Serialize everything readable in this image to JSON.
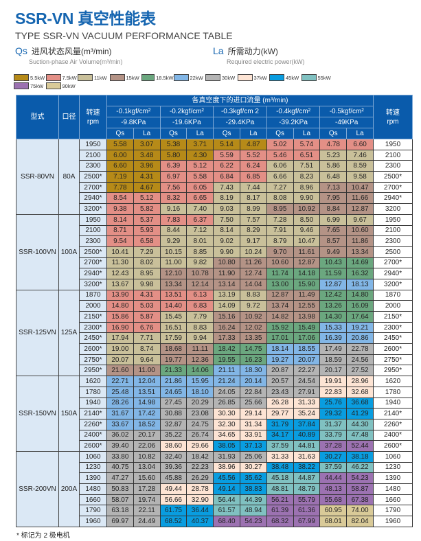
{
  "title": "SSR-VN 真空性能表",
  "subtitle": "TYPE SSR-VN VACUUM PERFORMANCE TABLE",
  "definitions": [
    {
      "symbol": "Qs",
      "cn": "进风状态风量(m³/min)",
      "en": "Suction-phase Air Volume(m³/min)"
    },
    {
      "symbol": "La",
      "cn": "所需动力(kW)",
      "en": "Required electric power(kW)"
    }
  ],
  "legend": [
    {
      "label": "5.5kW",
      "color": "#b68a18"
    },
    {
      "label": "7.5kW",
      "color": "#e38f86"
    },
    {
      "label": "11kW",
      "color": "#c9c09a"
    },
    {
      "label": "15kW",
      "color": "#b49386"
    },
    {
      "label": "18.5kW",
      "color": "#6ba77f"
    },
    {
      "label": "22kW",
      "color": "#82b6e6"
    },
    {
      "label": "30kW",
      "color": "#b4b4b4"
    },
    {
      "label": "37kW",
      "color": "#fde4d4"
    },
    {
      "label": "45kW",
      "color": "#099de0"
    },
    {
      "label": "55kW",
      "color": "#80c1c1"
    },
    {
      "label": "75kW",
      "color": "#9c72b1"
    },
    {
      "label": "90kW",
      "color": "#d9ca98"
    }
  ],
  "table": {
    "header": {
      "model": "型式",
      "bore": "口径",
      "rpm": "转速",
      "rpm_unit": "rpm",
      "flow_title": "各真空度下的进口流量 (m³/min)",
      "pressures": [
        {
          "kgf": "-0.1kgf/cm²",
          "kpa": "-9.8KPa"
        },
        {
          "kgf": "-0.2kgf/cm²",
          "kpa": "-19.6KPa"
        },
        {
          "kgf": "-0.3kgf/cm 2",
          "kpa": "-29.4KPa"
        },
        {
          "kgf": "-0.4kgf/cm²",
          "kpa": "-39.2KPa"
        },
        {
          "kgf": "-0.5kgf/cm²",
          "kpa": "-49KPa"
        }
      ],
      "qs": "Qs",
      "la": "La"
    },
    "groups": [
      {
        "model": "SSR-80VN",
        "bore": "80A",
        "rows": [
          {
            "rpm": "1950",
            "rpm_r": "1950",
            "v": [
              "5.58",
              "3.07",
              "5.38",
              "3.71",
              "5.14",
              "4.87",
              "5.02",
              "5.74",
              "4.78",
              "6.60"
            ],
            "c": [
              0,
              0,
              0,
              1,
              1
            ]
          },
          {
            "rpm": "2100",
            "rpm_r": "2100",
            "v": [
              "6.00",
              "3.48",
              "5.80",
              "4.30",
              "5.59",
              "5.52",
              "5.46",
              "6.51",
              "5.23",
              "7.46"
            ],
            "c": [
              0,
              0,
              1,
              1,
              2
            ]
          },
          {
            "rpm": "2300",
            "rpm_r": "2300",
            "v": [
              "6.60",
              "3.96",
              "6.39",
              "5.12",
              "6.22",
              "6.24",
              "6.06",
              "7.51",
              "5.86",
              "8.59"
            ],
            "c": [
              0,
              1,
              1,
              2,
              2
            ]
          },
          {
            "rpm": "2500*",
            "rpm_r": "2500*",
            "v": [
              "7.19",
              "4.31",
              "6.97",
              "5.58",
              "6.84",
              "6.85",
              "6.66",
              "8.23",
              "6.48",
              "9.58"
            ],
            "c": [
              0,
              1,
              1,
              2,
              2
            ]
          },
          {
            "rpm": "2700*",
            "rpm_r": "2700*",
            "v": [
              "7.78",
              "4.67",
              "7.56",
              "6.05",
              "7.43",
              "7.44",
              "7.27",
              "8.96",
              "7.13",
              "10.47"
            ],
            "c": [
              0,
              1,
              2,
              2,
              3
            ]
          },
          {
            "rpm": "2940*",
            "rpm_r": "2940*",
            "v": [
              "8.54",
              "5.12",
              "8.32",
              "6.65",
              "8.19",
              "8.17",
              "8.08",
              "9.90",
              "7.95",
              "11.66"
            ],
            "c": [
              1,
              1,
              2,
              2,
              3
            ]
          },
          {
            "rpm": "3200*",
            "rpm_r": "3200",
            "v": [
              "9.38",
              "5.82",
              "9.16",
              "7.40",
              "9.03",
              "8.99",
              "8.95",
              "10.92",
              "8.84",
              "12.87"
            ],
            "c": [
              1,
              2,
              2,
              3,
              3
            ]
          }
        ]
      },
      {
        "model": "SSR-100VN",
        "bore": "100A",
        "rows": [
          {
            "rpm": "1950",
            "rpm_r": "1950",
            "v": [
              "8.14",
              "5.37",
              "7.83",
              "6.37",
              "7.50",
              "7.57",
              "7.28",
              "8.50",
              "6.99",
              "9.67"
            ],
            "c": [
              1,
              1,
              2,
              2,
              2
            ]
          },
          {
            "rpm": "2100",
            "rpm_r": "2100",
            "v": [
              "8.71",
              "5.93",
              "8.44",
              "7.12",
              "8.14",
              "8.29",
              "7.91",
              "9.46",
              "7.65",
              "10.60"
            ],
            "c": [
              1,
              2,
              2,
              2,
              3
            ]
          },
          {
            "rpm": "2300",
            "rpm_r": "2300",
            "v": [
              "9.54",
              "6.58",
              "9.29",
              "8.01",
              "9.02",
              "9.17",
              "8.79",
              "10.47",
              "8.57",
              "11.86"
            ],
            "c": [
              1,
              2,
              2,
              2,
              3
            ]
          },
          {
            "rpm": "2500*",
            "rpm_r": "2500",
            "v": [
              "10.41",
              "7.29",
              "10.15",
              "8.85",
              "9.90",
              "10.24",
              "9.70",
              "11.61",
              "9.49",
              "13.34"
            ],
            "c": [
              2,
              2,
              2,
              3,
              3
            ]
          },
          {
            "rpm": "2700*",
            "rpm_r": "2700*",
            "v": [
              "11.30",
              "8.02",
              "11.00",
              "9.82",
              "10.80",
              "11.26",
              "10.60",
              "12.87",
              "10.43",
              "14.69"
            ],
            "c": [
              2,
              2,
              3,
              3,
              4
            ]
          },
          {
            "rpm": "2940*",
            "rpm_r": "2940*",
            "v": [
              "12.43",
              "8.95",
              "12.10",
              "10.78",
              "11.90",
              "12.74",
              "11.74",
              "14.18",
              "11.59",
              "16.32"
            ],
            "c": [
              2,
              3,
              3,
              4,
              4
            ]
          },
          {
            "rpm": "3200*",
            "rpm_r": "3200*",
            "v": [
              "13.67",
              "9.98",
              "13.34",
              "12.14",
              "13.14",
              "14.04",
              "13.00",
              "15.90",
              "12.87",
              "18.13"
            ],
            "c": [
              2,
              3,
              3,
              4,
              5
            ]
          }
        ]
      },
      {
        "model": "SSR-125VN",
        "bore": "125A",
        "rows": [
          {
            "rpm": "1870",
            "rpm_r": "1870",
            "v": [
              "13.90",
              "4.31",
              "13.51",
              "6.13",
              "13.19",
              "8.83",
              "12.87",
              "11.49",
              "12.42",
              "14.80"
            ],
            "c": [
              1,
              1,
              2,
              3,
              4
            ]
          },
          {
            "rpm": "2000",
            "rpm_r": "2000",
            "v": [
              "14.80",
              "5.03",
              "14.40",
              "6.83",
              "14.09",
              "9.72",
              "13.74",
              "12.55",
              "13.26",
              "16.09"
            ],
            "c": [
              1,
              1,
              2,
              3,
              4
            ]
          },
          {
            "rpm": "2150*",
            "rpm_r": "2150*",
            "v": [
              "15.86",
              "5.87",
              "15.45",
              "7.79",
              "15.16",
              "10.92",
              "14.82",
              "13.98",
              "14.30",
              "17.64"
            ],
            "c": [
              1,
              2,
              3,
              3,
              4
            ]
          },
          {
            "rpm": "2300*",
            "rpm_r": "2300*",
            "v": [
              "16.90",
              "6.76",
              "16.51",
              "8.83",
              "16.24",
              "12.02",
              "15.92",
              "15.49",
              "15.33",
              "19.21"
            ],
            "c": [
              1,
              2,
              3,
              4,
              5
            ]
          },
          {
            "rpm": "2450*",
            "rpm_r": "2450*",
            "v": [
              "17.94",
              "7.71",
              "17.59",
              "9.94",
              "17.33",
              "13.35",
              "17.01",
              "17.06",
              "16.39",
              "20.86"
            ],
            "c": [
              2,
              2,
              3,
              4,
              5
            ]
          },
          {
            "rpm": "2600*",
            "rpm_r": "2600*",
            "v": [
              "19.00",
              "8.74",
              "18.68",
              "11.11",
              "18.42",
              "14.75",
              "18.14",
              "18.55",
              "17.49",
              "22.78"
            ],
            "c": [
              2,
              3,
              4,
              5,
              6
            ]
          },
          {
            "rpm": "2750*",
            "rpm_r": "2750*",
            "v": [
              "20.07",
              "9.64",
              "19.77",
              "12.36",
              "19.55",
              "16.23",
              "19.27",
              "20.07",
              "18.59",
              "24.56"
            ],
            "c": [
              2,
              3,
              4,
              5,
              6
            ]
          },
          {
            "rpm": "2950*",
            "rpm_r": "2950*",
            "v": [
              "21.60",
              "11.00",
              "21.33",
              "14.06",
              "21.11",
              "18.30",
              "20.87",
              "22.27",
              "20.17",
              "27.52"
            ],
            "c": [
              3,
              4,
              5,
              6,
              6
            ]
          }
        ]
      },
      {
        "model": "SSR-150VN",
        "bore": "150A",
        "rows": [
          {
            "rpm": "1620",
            "rpm_r": "1620",
            "v": [
              "22.71",
              "12.04",
              "21.86",
              "15.95",
              "21.24",
              "20.14",
              "20.57",
              "24.54",
              "19.91",
              "28.96"
            ],
            "c": [
              5,
              5,
              5,
              6,
              7
            ]
          },
          {
            "rpm": "1780",
            "rpm_r": "1780",
            "v": [
              "25.48",
              "13.51",
              "24.65",
              "18.10",
              "24.05",
              "22.84",
              "23.43",
              "27.91",
              "22.83",
              "32.68"
            ],
            "c": [
              5,
              5,
              6,
              6,
              7
            ]
          },
          {
            "rpm": "1940",
            "rpm_r": "1940",
            "v": [
              "28.26",
              "14.98",
              "27.45",
              "20.29",
              "26.85",
              "25.66",
              "26.28",
              "31.33",
              "25.76",
              "36.68"
            ],
            "c": [
              5,
              6,
              6,
              7,
              8
            ]
          },
          {
            "rpm": "2140*",
            "rpm_r": "2140*",
            "v": [
              "31.67",
              "17.42",
              "30.88",
              "23.08",
              "30.30",
              "29.14",
              "29.77",
              "35.24",
              "29.32",
              "41.29"
            ],
            "c": [
              5,
              6,
              7,
              7,
              8
            ]
          },
          {
            "rpm": "2260*",
            "rpm_r": "2260*",
            "v": [
              "33.67",
              "18.52",
              "32.87",
              "24.75",
              "32.30",
              "31.34",
              "31.79",
              "37.84",
              "31.37",
              "44.30"
            ],
            "c": [
              5,
              6,
              7,
              8,
              9
            ]
          },
          {
            "rpm": "2400*",
            "rpm_r": "2400*",
            "v": [
              "36.02",
              "20.17",
              "35.22",
              "26.74",
              "34.65",
              "33.91",
              "34.17",
              "40.89",
              "33.79",
              "47.48"
            ],
            "c": [
              6,
              6,
              7,
              8,
              9
            ]
          },
          {
            "rpm": "2600*",
            "rpm_r": "2600*",
            "v": [
              "39.40",
              "22.06",
              "38.60",
              "29.66",
              "38.05",
              "37.13",
              "37.59",
              "44.81",
              "37.28",
              "52.44"
            ],
            "c": [
              6,
              7,
              8,
              9,
              10
            ]
          }
        ]
      },
      {
        "model": "SSR-200VN",
        "bore": "200A",
        "rows": [
          {
            "rpm": "1060",
            "rpm_r": "1060",
            "v": [
              "33.80",
              "10.82",
              "32.40",
              "18.42",
              "31.93",
              "25.06",
              "31.33",
              "31.63",
              "30.27",
              "38.18"
            ],
            "c": [
              6,
              6,
              6,
              7,
              8
            ]
          },
          {
            "rpm": "1230",
            "rpm_r": "1230",
            "v": [
              "40.75",
              "13.04",
              "39.36",
              "22.23",
              "38.96",
              "30.27",
              "38.48",
              "38.22",
              "37.59",
              "46.22"
            ],
            "c": [
              6,
              6,
              7,
              8,
              9
            ]
          },
          {
            "rpm": "1390",
            "rpm_r": "1390",
            "v": [
              "47.27",
              "15.60",
              "45.88",
              "26.29",
              "45.56",
              "35.62",
              "45.18",
              "44.87",
              "44.44",
              "54.23"
            ],
            "c": [
              6,
              6,
              8,
              9,
              10
            ]
          },
          {
            "rpm": "1480",
            "rpm_r": "1480",
            "v": [
              "50.83",
              "17.28",
              "49.44",
              "28.78",
              "49.14",
              "38.83",
              "48.81",
              "48.79",
              "48.13",
              "58.87"
            ],
            "c": [
              6,
              7,
              8,
              9,
              10
            ]
          },
          {
            "rpm": "1660",
            "rpm_r": "1660",
            "v": [
              "58.07",
              "19.74",
              "56.66",
              "32.90",
              "56.44",
              "44.39",
              "56.21",
              "55.79",
              "55.68",
              "67.38"
            ],
            "c": [
              6,
              7,
              9,
              10,
              10
            ]
          },
          {
            "rpm": "1790",
            "rpm_r": "1790",
            "v": [
              "63.18",
              "22.11",
              "61.75",
              "36.44",
              "61.57",
              "48.94",
              "61.39",
              "61.36",
              "60.95",
              "74.00"
            ],
            "c": [
              6,
              8,
              9,
              10,
              11
            ]
          },
          {
            "rpm": "1960",
            "rpm_r": "1960",
            "v": [
              "69.97",
              "24.49",
              "68.52",
              "40.37",
              "68.40",
              "54.23",
              "68.32",
              "67.99",
              "68.01",
              "82.04"
            ],
            "c": [
              6,
              8,
              10,
              10,
              11
            ]
          }
        ]
      }
    ]
  },
  "footnote": "* 标记为 2 极电机"
}
